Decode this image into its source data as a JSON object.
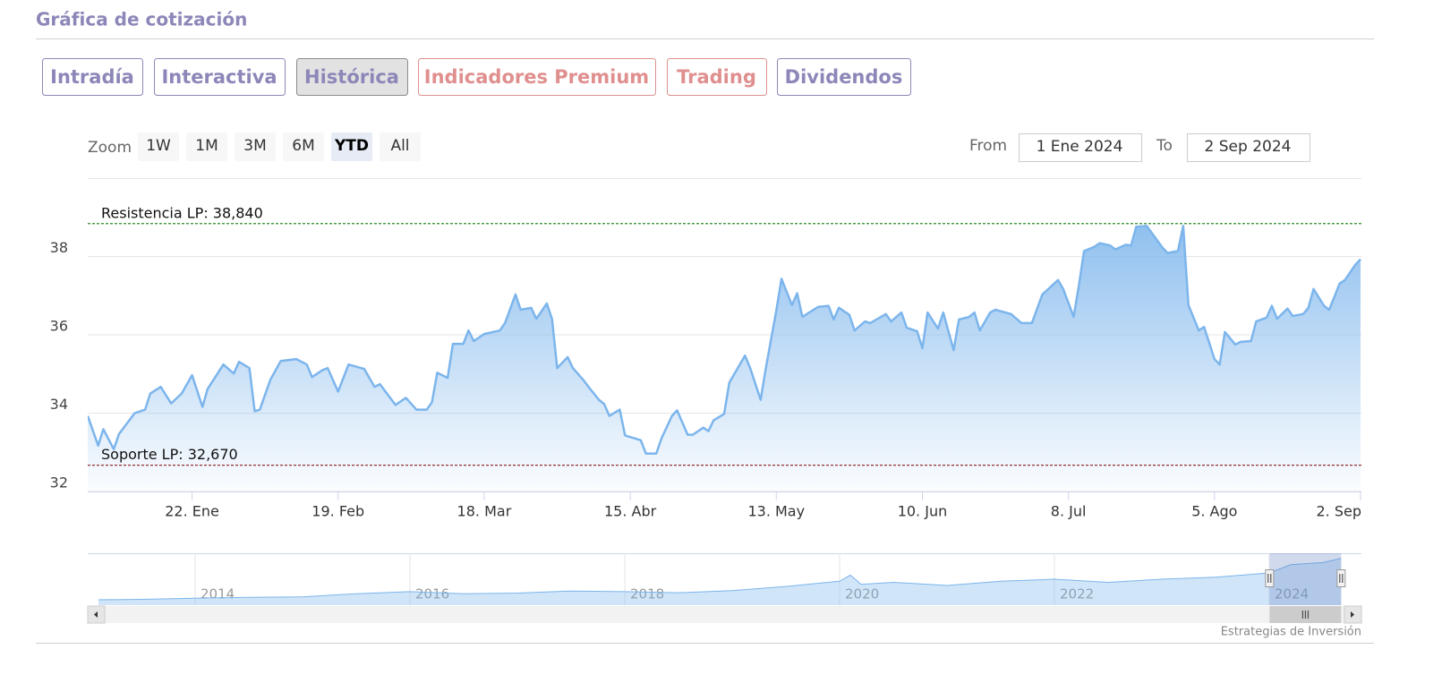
{
  "header": {
    "title": "Gráfica de cotización"
  },
  "tabs": [
    {
      "label": "Intradía",
      "color": "#8c87b8"
    },
    {
      "label": "Interactiva",
      "color": "#8c87b8"
    },
    {
      "label": "Histórica",
      "color": "#8c87b8"
    },
    {
      "label": "Indicadores Premium",
      "color": "#e08f8f"
    },
    {
      "label": "Trading",
      "color": "#e08f8f"
    },
    {
      "label": "Dividendos",
      "color": "#8c87b8"
    }
  ],
  "active_tab": 2,
  "zoom": {
    "label": "Zoom",
    "buttons": [
      "1W",
      "1M",
      "3M",
      "6M",
      "YTD",
      "All"
    ],
    "active": 4
  },
  "range": {
    "from_label": "From",
    "from": "1 Ene 2024",
    "to_label": "To",
    "to": "2 Sep 2024"
  },
  "chart_data": {
    "type": "area",
    "color": "#7cb5ec",
    "x": [
      "2024-01-02",
      "2024-01-04",
      "2024-01-05",
      "2024-01-07",
      "2024-01-08",
      "2024-01-11",
      "2024-01-13",
      "2024-01-14",
      "2024-01-16",
      "2024-01-18",
      "2024-01-20",
      "2024-01-22",
      "2024-01-24",
      "2024-01-25",
      "2024-01-28",
      "2024-01-30",
      "2024-01-31",
      "2024-02-02",
      "2024-02-03",
      "2024-02-04",
      "2024-02-06",
      "2024-02-08",
      "2024-02-11",
      "2024-02-13",
      "2024-02-14",
      "2024-02-16",
      "2024-02-17",
      "2024-02-19",
      "2024-02-21",
      "2024-02-24",
      "2024-02-26",
      "2024-02-27",
      "2024-03-01",
      "2024-03-03",
      "2024-03-05",
      "2024-03-07",
      "2024-03-08",
      "2024-03-09",
      "2024-03-11",
      "2024-03-12",
      "2024-03-14",
      "2024-03-15",
      "2024-03-16",
      "2024-03-18",
      "2024-03-21",
      "2024-03-22",
      "2024-03-24",
      "2024-03-25",
      "2024-03-27",
      "2024-03-28",
      "2024-03-30",
      "2024-03-31",
      "2024-04-01",
      "2024-04-03",
      "2024-04-04",
      "2024-04-06",
      "2024-04-07",
      "2024-04-09",
      "2024-04-10",
      "2024-04-11",
      "2024-04-13",
      "2024-04-14",
      "2024-04-17",
      "2024-04-18",
      "2024-04-20",
      "2024-04-21",
      "2024-04-23",
      "2024-04-24",
      "2024-04-26",
      "2024-04-27",
      "2024-04-29",
      "2024-04-30",
      "2024-05-01",
      "2024-05-03",
      "2024-05-04",
      "2024-05-06",
      "2024-05-07",
      "2024-05-08",
      "2024-05-10",
      "2024-05-11",
      "2024-05-13",
      "2024-05-14",
      "2024-05-16",
      "2024-05-17",
      "2024-05-18",
      "2024-05-21",
      "2024-05-23",
      "2024-05-24",
      "2024-05-25",
      "2024-05-27",
      "2024-05-28",
      "2024-05-30",
      "2024-05-31",
      "2024-06-03",
      "2024-06-04",
      "2024-06-06",
      "2024-06-07",
      "2024-06-09",
      "2024-06-10",
      "2024-06-11",
      "2024-06-13",
      "2024-06-14",
      "2024-06-16",
      "2024-06-17",
      "2024-06-19",
      "2024-06-20",
      "2024-06-21",
      "2024-06-23",
      "2024-06-24",
      "2024-06-27",
      "2024-06-29",
      "2024-07-01",
      "2024-07-03",
      "2024-07-04",
      "2024-07-06",
      "2024-07-07",
      "2024-07-09",
      "2024-07-10",
      "2024-07-11",
      "2024-07-13",
      "2024-07-14",
      "2024-07-16",
      "2024-07-17",
      "2024-07-19",
      "2024-07-20",
      "2024-07-21",
      "2024-07-23",
      "2024-07-26",
      "2024-07-27",
      "2024-07-29",
      "2024-07-30",
      "2024-07-31",
      "2024-08-02",
      "2024-08-03",
      "2024-08-05",
      "2024-08-06",
      "2024-08-07",
      "2024-08-09",
      "2024-08-10",
      "2024-08-12",
      "2024-08-13",
      "2024-08-15",
      "2024-08-16",
      "2024-08-17",
      "2024-08-19",
      "2024-08-20",
      "2024-08-22",
      "2024-08-23",
      "2024-08-24",
      "2024-08-26",
      "2024-08-27",
      "2024-08-29",
      "2024-08-30",
      "2024-09-01",
      "2024-09-02"
    ],
    "values": [
      33.93,
      33.17,
      33.59,
      33.08,
      33.47,
      34.0,
      34.09,
      34.5,
      34.67,
      34.25,
      34.5,
      34.97,
      34.16,
      34.62,
      35.24,
      35.01,
      35.31,
      35.15,
      34.05,
      34.09,
      34.85,
      35.33,
      35.38,
      35.24,
      34.92,
      35.1,
      35.15,
      34.55,
      35.24,
      35.13,
      34.67,
      34.74,
      34.21,
      34.39,
      34.09,
      34.09,
      34.28,
      35.03,
      34.9,
      35.77,
      35.77,
      36.11,
      35.84,
      36.02,
      36.11,
      36.3,
      37.03,
      36.64,
      36.69,
      36.41,
      36.8,
      36.41,
      35.15,
      35.43,
      35.15,
      34.85,
      34.67,
      34.34,
      34.23,
      33.93,
      34.09,
      33.43,
      33.31,
      32.97,
      32.97,
      33.36,
      33.93,
      34.07,
      33.45,
      33.45,
      33.63,
      33.54,
      33.82,
      33.98,
      34.78,
      35.24,
      35.47,
      35.15,
      34.34,
      35.15,
      36.62,
      37.43,
      36.76,
      37.06,
      36.46,
      36.71,
      36.74,
      36.39,
      36.69,
      36.51,
      36.11,
      36.34,
      36.3,
      36.53,
      36.34,
      36.57,
      36.18,
      36.09,
      35.66,
      36.57,
      36.16,
      36.57,
      35.61,
      36.39,
      36.46,
      36.57,
      36.11,
      36.57,
      36.64,
      36.53,
      36.3,
      36.3,
      37.03,
      37.15,
      37.4,
      37.17,
      36.46,
      37.26,
      38.14,
      38.25,
      38.34,
      38.28,
      38.18,
      38.3,
      38.28,
      38.76,
      38.78,
      38.23,
      38.09,
      38.14,
      38.78,
      36.76,
      36.11,
      36.2,
      35.38,
      35.24,
      36.07,
      35.75,
      35.82,
      35.84,
      36.34,
      36.44,
      36.74,
      36.41,
      36.67,
      36.48,
      36.53,
      36.69,
      37.17,
      36.74,
      36.64,
      37.31,
      37.4,
      37.79,
      37.93
    ],
    "xlim": [
      "2024-01-02",
      "2024-09-02"
    ],
    "xticks": [
      {
        "value": "2024-01-22",
        "label": "22. Ene"
      },
      {
        "value": "2024-02-19",
        "label": "19. Feb"
      },
      {
        "value": "2024-03-18",
        "label": "18. Mar"
      },
      {
        "value": "2024-04-15",
        "label": "15. Abr"
      },
      {
        "value": "2024-05-13",
        "label": "13. May"
      },
      {
        "value": "2024-06-10",
        "label": "10. Jun"
      },
      {
        "value": "2024-07-08",
        "label": "8. Jul"
      },
      {
        "value": "2024-08-05",
        "label": "5. Ago"
      },
      {
        "value": "2024-09-02",
        "label": "2. Sep"
      }
    ],
    "ylim": [
      32,
      40
    ],
    "yticks": [
      32,
      34,
      36,
      38
    ],
    "grid": true,
    "plot_lines": [
      {
        "value": 38.84,
        "label": "Resistencia LP: 38,840",
        "color": "#2e8b2e"
      },
      {
        "value": 32.67,
        "label": "Soporte LP: 32,670",
        "color": "#8b1a1a"
      }
    ]
  },
  "navigator": {
    "x": [
      2013.1,
      2013.5,
      2014.0,
      2014.5,
      2015.0,
      2015.5,
      2016.0,
      2016.5,
      2017.0,
      2017.5,
      2018.0,
      2018.5,
      2019.0,
      2019.5,
      2020.0,
      2020.1,
      2020.2,
      2020.5,
      2021.0,
      2021.5,
      2022.0,
      2022.5,
      2023.0,
      2023.5,
      2024.0,
      2024.2,
      2024.5,
      2024.67
    ],
    "values": [
      17.6,
      17.8,
      18.3,
      18.8,
      19.0,
      20.5,
      21.5,
      20.5,
      20.8,
      21.8,
      21.5,
      21.0,
      22.0,
      24.0,
      26.5,
      29.5,
      25.0,
      26.0,
      24.5,
      26.5,
      27.5,
      26.0,
      27.5,
      28.5,
      30.5,
      34.5,
      35.5,
      37.5
    ],
    "xlim": [
      2013,
      2024.85
    ],
    "ylim": [
      15,
      40
    ],
    "xticks": [
      2014,
      2016,
      2018,
      2020,
      2022,
      2024
    ]
  },
  "credit": "Estrategias de Inversión"
}
